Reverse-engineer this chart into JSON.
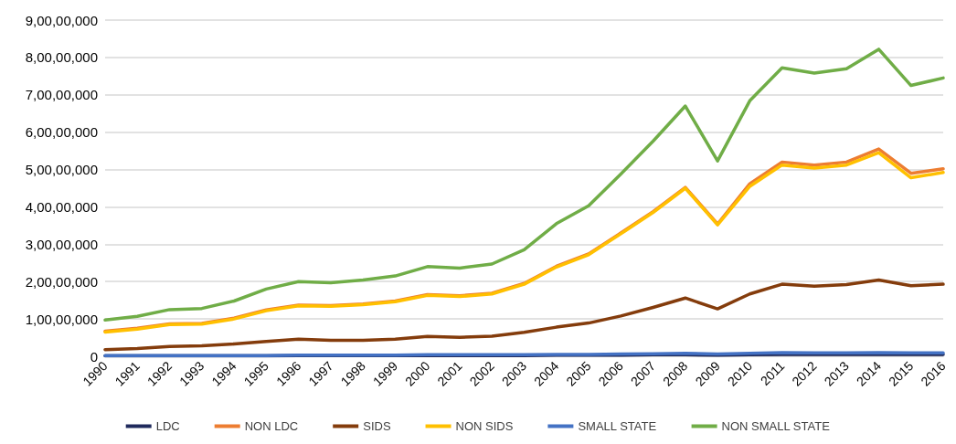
{
  "chart_data": {
    "type": "line",
    "categories": [
      "1990",
      "1991",
      "1992",
      "1993",
      "1994",
      "1995",
      "1996",
      "1997",
      "1998",
      "1999",
      "2000",
      "2001",
      "2002",
      "2003",
      "2004",
      "2005",
      "2006",
      "2007",
      "2008",
      "2009",
      "2010",
      "2011",
      "2012",
      "2013",
      "2014",
      "2015",
      "2016"
    ],
    "series": [
      {
        "name": "LDC",
        "color": "#1f2a5c",
        "values": [
          100000,
          100000,
          100000,
          100000,
          100000,
          100000,
          200000,
          200000,
          200000,
          200000,
          200000,
          200000,
          200000,
          200000,
          300000,
          300000,
          300000,
          400000,
          400000,
          300000,
          400000,
          500000,
          500000,
          500000,
          500000,
          500000,
          500000
        ]
      },
      {
        "name": "NON LDC",
        "color": "#ed7d31",
        "values": [
          6700000,
          7500000,
          8700000,
          8800000,
          10200000,
          12400000,
          13700000,
          13600000,
          14000000,
          14800000,
          16500000,
          16200000,
          16900000,
          19500000,
          24100000,
          27400000,
          33000000,
          38700000,
          45200000,
          35400000,
          46200000,
          52000000,
          51200000,
          52000000,
          55500000,
          49000000,
          50200000
        ]
      },
      {
        "name": "SIDS",
        "color": "#843c0c",
        "values": [
          1800000,
          2100000,
          2600000,
          2800000,
          3300000,
          4000000,
          4600000,
          4300000,
          4300000,
          4600000,
          5300000,
          5100000,
          5400000,
          6400000,
          7800000,
          8900000,
          10800000,
          13100000,
          15600000,
          12700000,
          16700000,
          19300000,
          18800000,
          19200000,
          20400000,
          18900000,
          19300000
        ]
      },
      {
        "name": "NON SIDS",
        "color": "#ffc000",
        "values": [
          6500000,
          7300000,
          8500000,
          8600000,
          10000000,
          12200000,
          13500000,
          13400000,
          13800000,
          14600000,
          16300000,
          16000000,
          16700000,
          19300000,
          23900000,
          27200000,
          32800000,
          38500000,
          45000000,
          35200000,
          45500000,
          51200000,
          50400000,
          51200000,
          54500000,
          47800000,
          49200000
        ]
      },
      {
        "name": "SMALL STATE",
        "color": "#4472c4",
        "values": [
          200000,
          200000,
          200000,
          200000,
          200000,
          200000,
          300000,
          300000,
          300000,
          300000,
          400000,
          400000,
          400000,
          400000,
          500000,
          500000,
          600000,
          700000,
          800000,
          600000,
          800000,
          1000000,
          900000,
          900000,
          1000000,
          900000,
          900000
        ]
      },
      {
        "name": "NON SMALL STATE",
        "color": "#70ad47",
        "values": [
          9700000,
          10700000,
          12500000,
          12800000,
          14800000,
          18000000,
          20000000,
          19700000,
          20400000,
          21500000,
          24000000,
          23600000,
          24700000,
          28500000,
          35500000,
          40300000,
          48800000,
          57600000,
          67000000,
          52300000,
          68400000,
          77200000,
          75800000,
          77000000,
          82200000,
          72500000,
          74500000
        ]
      }
    ],
    "ylim": [
      0,
      90000000
    ],
    "yticks": [
      0,
      {
        "value": 10000000,
        "label": "1,00,00,000"
      },
      {
        "value": 20000000,
        "label": "2,00,00,000"
      },
      {
        "value": 30000000,
        "label": "3,00,00,000"
      },
      {
        "value": 40000000,
        "label": "4,00,00,000"
      },
      {
        "value": 50000000,
        "label": "5,00,00,000"
      },
      {
        "value": 60000000,
        "label": "6,00,00,000"
      },
      {
        "value": 70000000,
        "label": "7,00,00,000"
      },
      {
        "value": 80000000,
        "label": "8,00,00,000"
      },
      {
        "value": 90000000,
        "label": "9,00,00,000"
      }
    ],
    "grid": "y",
    "legend": "bottom",
    "marker": "none",
    "line_style": "solid"
  }
}
